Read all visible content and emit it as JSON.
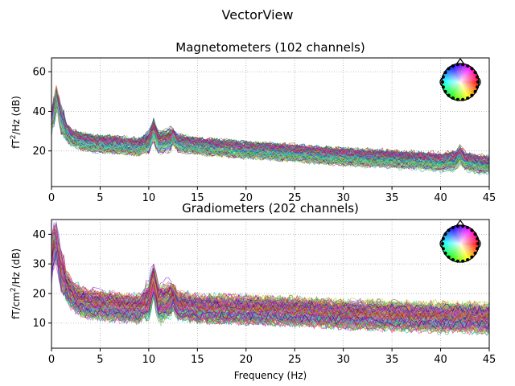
{
  "figure": {
    "title": "VectorView"
  },
  "chart_data": [
    {
      "type": "line",
      "title": "Magnetometers (102 channels)",
      "xlabel": "",
      "ylabel_prefix": "fT",
      "ylabel_sup": "2",
      "ylabel_suffix": "/Hz (dB)",
      "xlim": [
        0,
        45
      ],
      "ylim": [
        2,
        67
      ],
      "xticks": [
        0,
        5,
        10,
        15,
        20,
        25,
        30,
        35,
        40,
        45
      ],
      "yticks": [
        20,
        40,
        60
      ],
      "grid": true,
      "channel_count": 102,
      "series_style": "many thin overlaid per-channel spectra, colored by sensor position",
      "reference_profile": {
        "x": [
          0,
          0.5,
          1,
          2,
          3,
          4,
          5,
          7,
          9,
          10,
          10.5,
          11,
          12,
          12.5,
          13,
          15,
          20,
          25,
          30,
          35,
          40,
          41.5,
          42,
          42.5,
          44,
          45
        ],
        "y": [
          33,
          45,
          33,
          27,
          25,
          24,
          23.5,
          23,
          22,
          25,
          31,
          25,
          26,
          27,
          24,
          22.5,
          20.5,
          19,
          17,
          16,
          14.5,
          15,
          18,
          15,
          13.5,
          13
        ]
      },
      "inset": "sensor-layout-head-legend"
    },
    {
      "type": "line",
      "title": "Gradiometers (202 channels)",
      "xlabel": "Frequency (Hz)",
      "ylabel_prefix": "fT/cm",
      "ylabel_sup": "2",
      "ylabel_suffix": "/Hz (dB)",
      "xlim": [
        0,
        45
      ],
      "ylim": [
        1.5,
        45
      ],
      "xticks": [
        0,
        5,
        10,
        15,
        20,
        25,
        30,
        35,
        40,
        45
      ],
      "yticks": [
        10,
        20,
        30,
        40
      ],
      "grid": true,
      "channel_count": 202,
      "series_style": "many thin overlaid per-channel spectra, colored by sensor position",
      "reference_profile": {
        "x": [
          0,
          0.4,
          1,
          2,
          3,
          4,
          5,
          7,
          9,
          10,
          10.5,
          11,
          12,
          12.5,
          13,
          15,
          20,
          25,
          30,
          35,
          40,
          42,
          45
        ],
        "y": [
          30,
          38,
          26,
          20,
          17.5,
          16.5,
          16,
          15.5,
          15,
          18,
          25,
          17,
          18,
          19,
          16,
          15,
          14.5,
          14,
          13,
          12.5,
          12,
          12,
          11.5
        ]
      },
      "inset": "sensor-layout-head-legend"
    }
  ]
}
